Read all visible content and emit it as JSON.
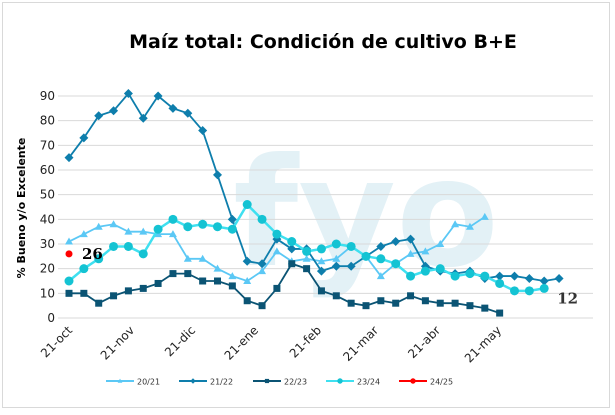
{
  "chart_data": {
    "type": "line",
    "title": "Maíz total: Condición de cultivo B+E",
    "xlabel": "",
    "ylabel": "% Bueno y/o Excelente",
    "ylim": [
      0,
      90
    ],
    "yticks": [
      0,
      10,
      20,
      30,
      40,
      50,
      60,
      70,
      80,
      90
    ],
    "grid": true,
    "legend": "bottom",
    "x_tick_labels": [
      "21-oct",
      "21-nov",
      "21-dic",
      "21-ene",
      "21-feb",
      "21-mar",
      "21-abr",
      "21-may"
    ],
    "x_frequency": "weekly from 21-oct",
    "series": [
      {
        "name": "20/21",
        "color": "#5bc8f5",
        "marker": "triangle",
        "values": [
          31,
          34,
          37,
          38,
          35,
          35,
          34,
          34,
          24,
          24,
          20,
          17,
          15,
          19,
          27,
          23,
          24,
          23,
          24,
          29,
          25,
          17,
          22,
          26,
          27,
          30,
          38,
          37,
          41
        ]
      },
      {
        "name": "21/22",
        "color": "#0e7eac",
        "marker": "diamond",
        "values": [
          65,
          73,
          82,
          84,
          91,
          81,
          90,
          85,
          83,
          76,
          58,
          40,
          23,
          22,
          32,
          28,
          28,
          19,
          21,
          21,
          25,
          29,
          31,
          32,
          21,
          19,
          18,
          19,
          16,
          17,
          17,
          16,
          15,
          16
        ]
      },
      {
        "name": "22/23",
        "color": "#0b5474",
        "marker": "square",
        "values": [
          10,
          10,
          6,
          9,
          11,
          12,
          14,
          18,
          18,
          15,
          15,
          13,
          7,
          5,
          12,
          22,
          20,
          11,
          9,
          6,
          5,
          7,
          6,
          9,
          7,
          6,
          6,
          5,
          4,
          2
        ]
      },
      {
        "name": "23/24",
        "color": "#3fe0f0",
        "marker": "circle",
        "marker_color": "#14c3d3",
        "values": [
          15,
          20,
          24,
          29,
          29,
          26,
          36,
          40,
          37,
          38,
          37,
          36,
          46,
          40,
          34,
          31,
          27,
          28,
          30,
          29,
          25,
          24,
          22,
          17,
          19,
          20,
          17,
          18,
          17,
          14,
          11,
          11,
          12
        ]
      },
      {
        "name": "24/25",
        "color": "#ff0000",
        "marker": "circle",
        "values": [
          26
        ]
      }
    ],
    "annotations": [
      {
        "text": "26",
        "series": "24/25",
        "index": 0
      },
      {
        "text": "12",
        "series": "23/24",
        "index": 32
      }
    ]
  },
  "watermark": "fyo"
}
